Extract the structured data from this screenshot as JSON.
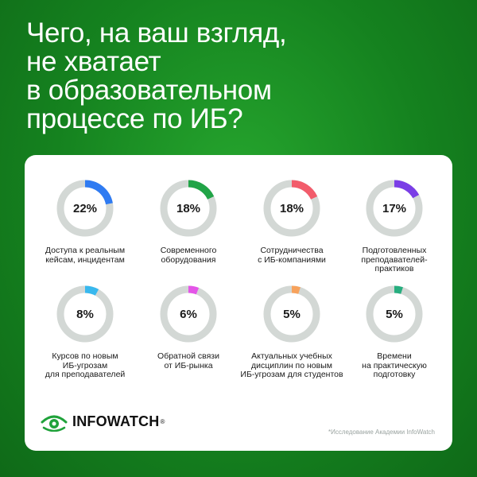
{
  "headline": {
    "line1": "Чего, на ваш взгляд,",
    "line2": "не хватает",
    "line3": "в образовательном",
    "line4": "процессе по ИБ?"
  },
  "chart_data": {
    "type": "pie",
    "items": [
      {
        "value": 22,
        "display": "22%",
        "label": "Доступа к реальным\nкейсам, инцидентам",
        "color": "#2f7bf2"
      },
      {
        "value": 18,
        "display": "18%",
        "label": "Современного\nоборудования",
        "color": "#21a447"
      },
      {
        "value": 18,
        "display": "18%",
        "label": "Сотрудничества\nс ИБ-компаниями",
        "color": "#f25c6b"
      },
      {
        "value": 17,
        "display": "17%",
        "label": "Подготовленных\nпреподавателей-\nпрактиков",
        "color": "#7a3ee6"
      },
      {
        "value": 8,
        "display": "8%",
        "label": "Курсов по новым\nИБ-угрозам\nдля преподавателей",
        "color": "#38b8ee"
      },
      {
        "value": 6,
        "display": "6%",
        "label": "Обратной связи\nот ИБ-рынка",
        "color": "#e455e8"
      },
      {
        "value": 5,
        "display": "5%",
        "label": "Актуальных учебных\nдисциплин по новым\nИБ-угрозам для студентов",
        "color": "#f7a25c"
      },
      {
        "value": 5,
        "display": "5%",
        "label": "Времени\nна практическую\nподготовку",
        "color": "#27ae7f"
      }
    ],
    "track_color": "#d3d8d5"
  },
  "brand": {
    "name": "INFOWATCH",
    "reg": "®"
  },
  "source": "*Исследование Академии InfoWatch"
}
